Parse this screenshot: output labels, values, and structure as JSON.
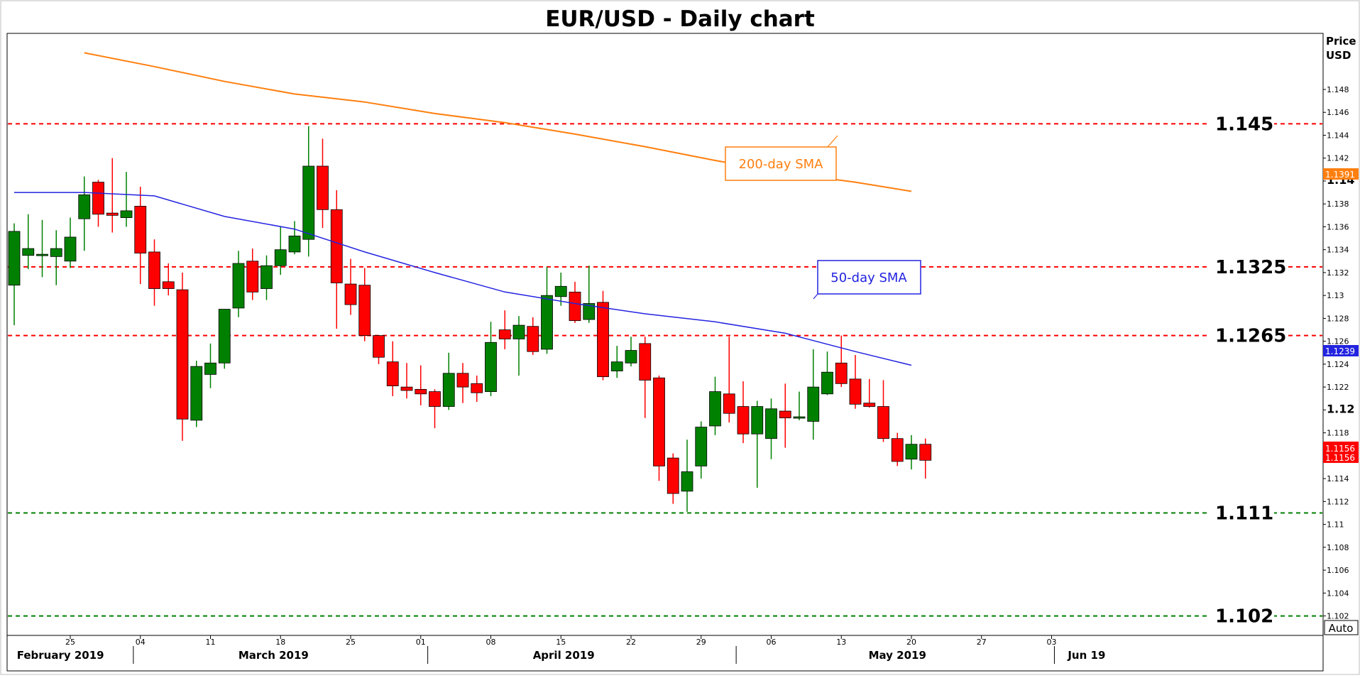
{
  "chart_data": {
    "type": "candlestick",
    "title": "EUR/USD - Daily chart",
    "y_axis_label": [
      "Price",
      "USD"
    ],
    "ylim": [
      1.1003,
      1.1529
    ],
    "y_ticks": [
      "1.148",
      "1.146",
      "1.144",
      "1.142",
      "1.14",
      "1.138",
      "1.136",
      "1.134",
      "1.132",
      "1.13",
      "1.128",
      "1.126",
      "1.124",
      "1.122",
      "1.12",
      "1.118",
      "1.116",
      "1.114",
      "1.112",
      "1.11",
      "1.108",
      "1.106",
      "1.104",
      "1.102"
    ],
    "y_ticks_bold": [
      "1.14",
      "1.12"
    ],
    "x_ticks": [
      {
        "label": "25",
        "day": 4
      },
      {
        "label": "04",
        "day": 9
      },
      {
        "label": "11",
        "day": 14
      },
      {
        "label": "18",
        "day": 19
      },
      {
        "label": "25",
        "day": 24
      },
      {
        "label": "01",
        "day": 29
      },
      {
        "label": "08",
        "day": 34
      },
      {
        "label": "15",
        "day": 39
      },
      {
        "label": "22",
        "day": 44
      },
      {
        "label": "29",
        "day": 49
      },
      {
        "label": "06",
        "day": 54
      },
      {
        "label": "13",
        "day": 59
      },
      {
        "label": "20",
        "day": 64
      },
      {
        "label": "27",
        "day": 69
      },
      {
        "label": "03",
        "day": 74
      }
    ],
    "month_labels": [
      {
        "label": "February 2019",
        "day": 3.3
      },
      {
        "label": "March 2019",
        "day": 18.5
      },
      {
        "label": "April 2019",
        "day": 39.2
      },
      {
        "label": "May 2019",
        "day": 63
      },
      {
        "label": "Jun 19",
        "day": 76.5
      }
    ],
    "month_separators": [
      8.5,
      29.5,
      51.5,
      74.2
    ],
    "candles": [
      {
        "o": 1.1309,
        "h": 1.1363,
        "l": 1.1274,
        "c": 1.1356
      },
      {
        "o": 1.1335,
        "h": 1.1371,
        "l": 1.1323,
        "c": 1.1341
      },
      {
        "o": 1.1335,
        "h": 1.1366,
        "l": 1.1316,
        "c": 1.1336
      },
      {
        "o": 1.1334,
        "h": 1.1357,
        "l": 1.1309,
        "c": 1.1341
      },
      {
        "o": 1.133,
        "h": 1.1368,
        "l": 1.1324,
        "c": 1.1351
      },
      {
        "o": 1.1367,
        "h": 1.1404,
        "l": 1.1339,
        "c": 1.1388
      },
      {
        "o": 1.1399,
        "h": 1.1401,
        "l": 1.136,
        "c": 1.1371
      },
      {
        "o": 1.1372,
        "h": 1.142,
        "l": 1.1355,
        "c": 1.137
      },
      {
        "o": 1.1368,
        "h": 1.1408,
        "l": 1.136,
        "c": 1.1374
      },
      {
        "o": 1.1378,
        "h": 1.1395,
        "l": 1.131,
        "c": 1.1337
      },
      {
        "o": 1.1338,
        "h": 1.1349,
        "l": 1.1291,
        "c": 1.1306
      },
      {
        "o": 1.1312,
        "h": 1.1328,
        "l": 1.13,
        "c": 1.1306
      },
      {
        "o": 1.1305,
        "h": 1.132,
        "l": 1.1173,
        "c": 1.1192
      },
      {
        "o": 1.1191,
        "h": 1.1243,
        "l": 1.1185,
        "c": 1.1238
      },
      {
        "o": 1.1231,
        "h": 1.1258,
        "l": 1.1219,
        "c": 1.1241
      },
      {
        "o": 1.1241,
        "h": 1.1288,
        "l": 1.1236,
        "c": 1.1288
      },
      {
        "o": 1.1289,
        "h": 1.1339,
        "l": 1.1281,
        "c": 1.1328
      },
      {
        "o": 1.133,
        "h": 1.1341,
        "l": 1.1296,
        "c": 1.1303
      },
      {
        "o": 1.1306,
        "h": 1.1335,
        "l": 1.1296,
        "c": 1.1326
      },
      {
        "o": 1.1326,
        "h": 1.136,
        "l": 1.1318,
        "c": 1.134
      },
      {
        "o": 1.1338,
        "h": 1.1365,
        "l": 1.1336,
        "c": 1.1352
      },
      {
        "o": 1.1349,
        "h": 1.1448,
        "l": 1.1334,
        "c": 1.1413
      },
      {
        "o": 1.1413,
        "h": 1.1437,
        "l": 1.1359,
        "c": 1.1375
      },
      {
        "o": 1.1375,
        "h": 1.1392,
        "l": 1.1271,
        "c": 1.1311
      },
      {
        "o": 1.131,
        "h": 1.1332,
        "l": 1.1283,
        "c": 1.1292
      },
      {
        "o": 1.1309,
        "h": 1.1324,
        "l": 1.126,
        "c": 1.1265
      },
      {
        "o": 1.1265,
        "h": 1.1265,
        "l": 1.124,
        "c": 1.1246
      },
      {
        "o": 1.1242,
        "h": 1.126,
        "l": 1.1212,
        "c": 1.1221
      },
      {
        "o": 1.122,
        "h": 1.1241,
        "l": 1.121,
        "c": 1.1217
      },
      {
        "o": 1.1218,
        "h": 1.1239,
        "l": 1.1204,
        "c": 1.1214
      },
      {
        "o": 1.1216,
        "h": 1.1218,
        "l": 1.1184,
        "c": 1.1203
      },
      {
        "o": 1.1203,
        "h": 1.125,
        "l": 1.12,
        "c": 1.1232
      },
      {
        "o": 1.1232,
        "h": 1.1241,
        "l": 1.1206,
        "c": 1.122
      },
      {
        "o": 1.1223,
        "h": 1.123,
        "l": 1.1207,
        "c": 1.1215
      },
      {
        "o": 1.1216,
        "h": 1.1277,
        "l": 1.1212,
        "c": 1.1259
      },
      {
        "o": 1.127,
        "h": 1.1287,
        "l": 1.1253,
        "c": 1.1262
      },
      {
        "o": 1.1262,
        "h": 1.1282,
        "l": 1.123,
        "c": 1.1274
      },
      {
        "o": 1.1273,
        "h": 1.1281,
        "l": 1.1248,
        "c": 1.1251
      },
      {
        "o": 1.1253,
        "h": 1.1325,
        "l": 1.1249,
        "c": 1.13
      },
      {
        "o": 1.1299,
        "h": 1.132,
        "l": 1.1291,
        "c": 1.1308
      },
      {
        "o": 1.1303,
        "h": 1.1312,
        "l": 1.1276,
        "c": 1.1278
      },
      {
        "o": 1.1279,
        "h": 1.1326,
        "l": 1.1276,
        "c": 1.1293
      },
      {
        "o": 1.1294,
        "h": 1.1304,
        "l": 1.1226,
        "c": 1.1229
      },
      {
        "o": 1.1234,
        "h": 1.1256,
        "l": 1.1228,
        "c": 1.1242
      },
      {
        "o": 1.1241,
        "h": 1.1264,
        "l": 1.1238,
        "c": 1.1252
      },
      {
        "o": 1.1258,
        "h": 1.1264,
        "l": 1.1193,
        "c": 1.1226
      },
      {
        "o": 1.1228,
        "h": 1.123,
        "l": 1.1138,
        "c": 1.1151
      },
      {
        "o": 1.1158,
        "h": 1.1162,
        "l": 1.1118,
        "c": 1.1127
      },
      {
        "o": 1.1129,
        "h": 1.1174,
        "l": 1.1111,
        "c": 1.1146
      },
      {
        "o": 1.1151,
        "h": 1.119,
        "l": 1.114,
        "c": 1.1185
      },
      {
        "o": 1.1186,
        "h": 1.1229,
        "l": 1.1178,
        "c": 1.1216
      },
      {
        "o": 1.1214,
        "h": 1.1264,
        "l": 1.1189,
        "c": 1.1197
      },
      {
        "o": 1.1203,
        "h": 1.1225,
        "l": 1.1171,
        "c": 1.1179
      },
      {
        "o": 1.1179,
        "h": 1.1208,
        "l": 1.1132,
        "c": 1.1203
      },
      {
        "o": 1.1175,
        "h": 1.121,
        "l": 1.1157,
        "c": 1.1201
      },
      {
        "o": 1.1199,
        "h": 1.1223,
        "l": 1.1167,
        "c": 1.1193
      },
      {
        "o": 1.1193,
        "h": 1.1216,
        "l": 1.1191,
        "c": 1.1194
      },
      {
        "o": 1.119,
        "h": 1.1253,
        "l": 1.1174,
        "c": 1.122
      },
      {
        "o": 1.1214,
        "h": 1.1251,
        "l": 1.1213,
        "c": 1.1233
      },
      {
        "o": 1.1241,
        "h": 1.1265,
        "l": 1.122,
        "c": 1.1223
      },
      {
        "o": 1.1227,
        "h": 1.1248,
        "l": 1.1201,
        "c": 1.1205
      },
      {
        "o": 1.1206,
        "h": 1.1227,
        "l": 1.1202,
        "c": 1.1203
      },
      {
        "o": 1.1203,
        "h": 1.1226,
        "l": 1.1172,
        "c": 1.1175
      },
      {
        "o": 1.1175,
        "h": 1.118,
        "l": 1.1151,
        "c": 1.1155
      },
      {
        "o": 1.1157,
        "h": 1.1178,
        "l": 1.1148,
        "c": 1.117
      },
      {
        "o": 1.117,
        "h": 1.1175,
        "l": 1.114,
        "c": 1.1156
      }
    ],
    "sma200": {
      "label": "200-day SMA",
      "color": "#ff7f0e",
      "last_value": "1.1391",
      "points": [
        [
          5,
          1.1512
        ],
        [
          10,
          1.15
        ],
        [
          15,
          1.1487
        ],
        [
          20,
          1.1476
        ],
        [
          25,
          1.1469
        ],
        [
          30,
          1.1459
        ],
        [
          35,
          1.1451
        ],
        [
          40,
          1.1441
        ],
        [
          45,
          1.143
        ],
        [
          50,
          1.1418
        ],
        [
          55,
          1.1407
        ],
        [
          60,
          1.1399
        ],
        [
          64,
          1.1391
        ]
      ]
    },
    "sma50": {
      "label": "50-day SMA",
      "color": "#2323e0",
      "last_value": "1.1239",
      "points": [
        [
          0,
          1.139
        ],
        [
          5,
          1.139
        ],
        [
          10,
          1.1387
        ],
        [
          15,
          1.1369
        ],
        [
          20,
          1.1358
        ],
        [
          25,
          1.1338
        ],
        [
          30,
          1.132
        ],
        [
          35,
          1.1303
        ],
        [
          40,
          1.1293
        ],
        [
          45,
          1.1284
        ],
        [
          50,
          1.1277
        ],
        [
          55,
          1.1267
        ],
        [
          60,
          1.1251
        ],
        [
          64,
          1.1239
        ]
      ]
    },
    "levels": [
      {
        "value": 1.145,
        "label": "1.145",
        "color": "#ff0000"
      },
      {
        "value": 1.1325,
        "label": "1.1325",
        "color": "#ff0000"
      },
      {
        "value": 1.1265,
        "label": "1.1265",
        "color": "#ff0000"
      },
      {
        "value": 1.111,
        "label": "1.111",
        "color": "#008000"
      },
      {
        "value": 1.102,
        "label": "1.102",
        "color": "#008000"
      }
    ],
    "last_price": {
      "value": 1.1156,
      "labels": [
        "1.1156",
        "1.1156"
      ],
      "color": "#ff0000"
    },
    "auto_button": "Auto",
    "colors": {
      "up": "#008000",
      "down": "#ff0000",
      "wick": "#000000"
    }
  }
}
